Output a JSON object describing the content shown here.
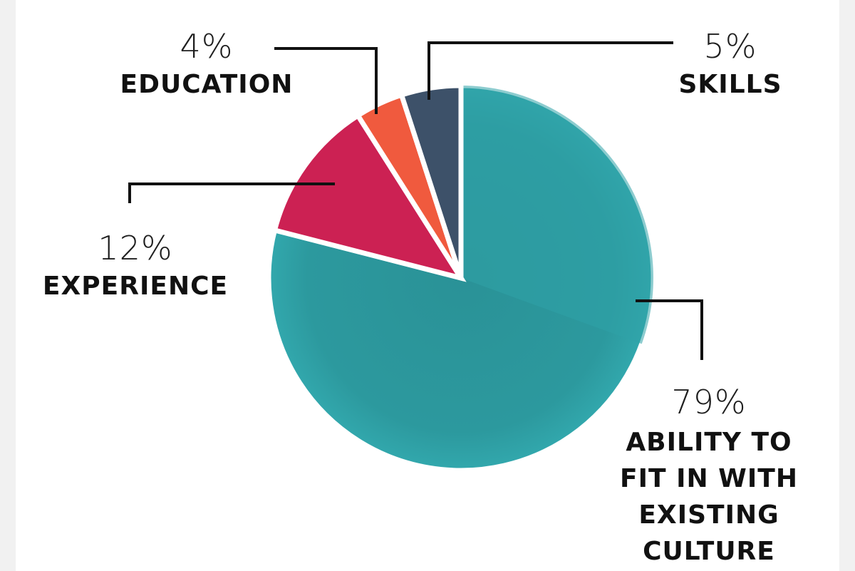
{
  "chart_data": {
    "type": "pie",
    "slices": [
      {
        "label": "ABILITY TO FIT IN WITH EXISTING CULTURE",
        "label_lines": [
          "ABILITY TO",
          "FIT IN WITH",
          "EXISTING",
          "CULTURE"
        ],
        "value": 79,
        "value_label": "79%",
        "color": "#2fa3a8",
        "shade": "#2a9297"
      },
      {
        "label": "EXPERIENCE",
        "label_lines": [
          "EXPERIENCE"
        ],
        "value": 12,
        "value_label": "12%",
        "color": "#cc2153",
        "shade": "#cc2153"
      },
      {
        "label": "EDUCATION",
        "label_lines": [
          "EDUCATION"
        ],
        "value": 4,
        "value_label": "4%",
        "color": "#f05a3e",
        "shade": "#f05a3e"
      },
      {
        "label": "SKILLS",
        "label_lines": [
          "SKILLS"
        ],
        "value": 5,
        "value_label": "5%",
        "color": "#3d5169",
        "shade": "#3d5169"
      }
    ]
  }
}
